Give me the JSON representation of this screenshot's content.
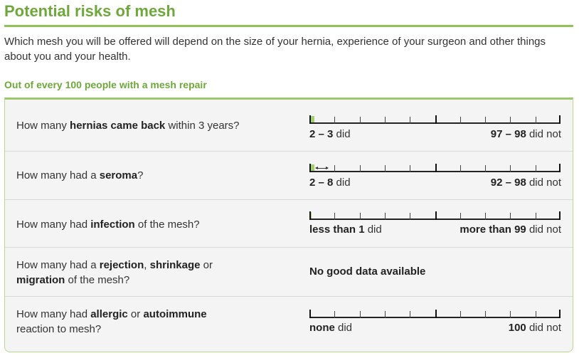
{
  "header": {
    "title": "Potential risks of mesh",
    "intro": "Which mesh you will be offered will depend on the size of your hernia, experience of your surgeon and other things about you and your health.",
    "subheading": "Out of every 100 people with a mesh repair"
  },
  "rows": [
    {
      "q_pre": "How many ",
      "q_bold1": "hernias came back",
      "q_post": " within 3 years?",
      "did_value": "2 – 3",
      "did_suffix": " did",
      "did_not_value": "97 – 98",
      "did_not_suffix": " did not",
      "fill_fraction": 0.02,
      "range_low": 0.02,
      "range_high": 0.03
    },
    {
      "q_pre": "How many had a ",
      "q_bold1": "seroma",
      "q_post": "?",
      "did_value": "2 – 8",
      "did_suffix": " did",
      "did_not_value": "92 – 98",
      "did_not_suffix": " did not",
      "fill_fraction": 0.02,
      "range_low": 0.02,
      "range_high": 0.08
    },
    {
      "q_pre": "How many had ",
      "q_bold1": "infection",
      "q_post": " of the mesh?",
      "did_value": "less than 1",
      "did_suffix": " did",
      "did_not_value": "more than 99",
      "did_not_suffix": " did not",
      "fill_fraction": 0.005
    },
    {
      "q_pre": "How many had a ",
      "q_bold1": "rejection",
      "q_mid1": ", ",
      "q_bold2": "shrinkage",
      "q_mid2": " or ",
      "q_bold3": "migration",
      "q_post": " of the mesh?",
      "no_data": "No good data available"
    },
    {
      "q_pre": "How many had ",
      "q_bold1": "allergic",
      "q_mid1": " or ",
      "q_bold2": "autoimmune",
      "q_post": " reaction to mesh?",
      "did_value": "none",
      "did_suffix": " did",
      "did_not_value": "100",
      "did_not_suffix": " did not",
      "fill_fraction": 0
    }
  ],
  "colors": {
    "accent": "#6ea83a",
    "fill": "#a3cf6e",
    "panel_bg": "#f4f4f4"
  }
}
